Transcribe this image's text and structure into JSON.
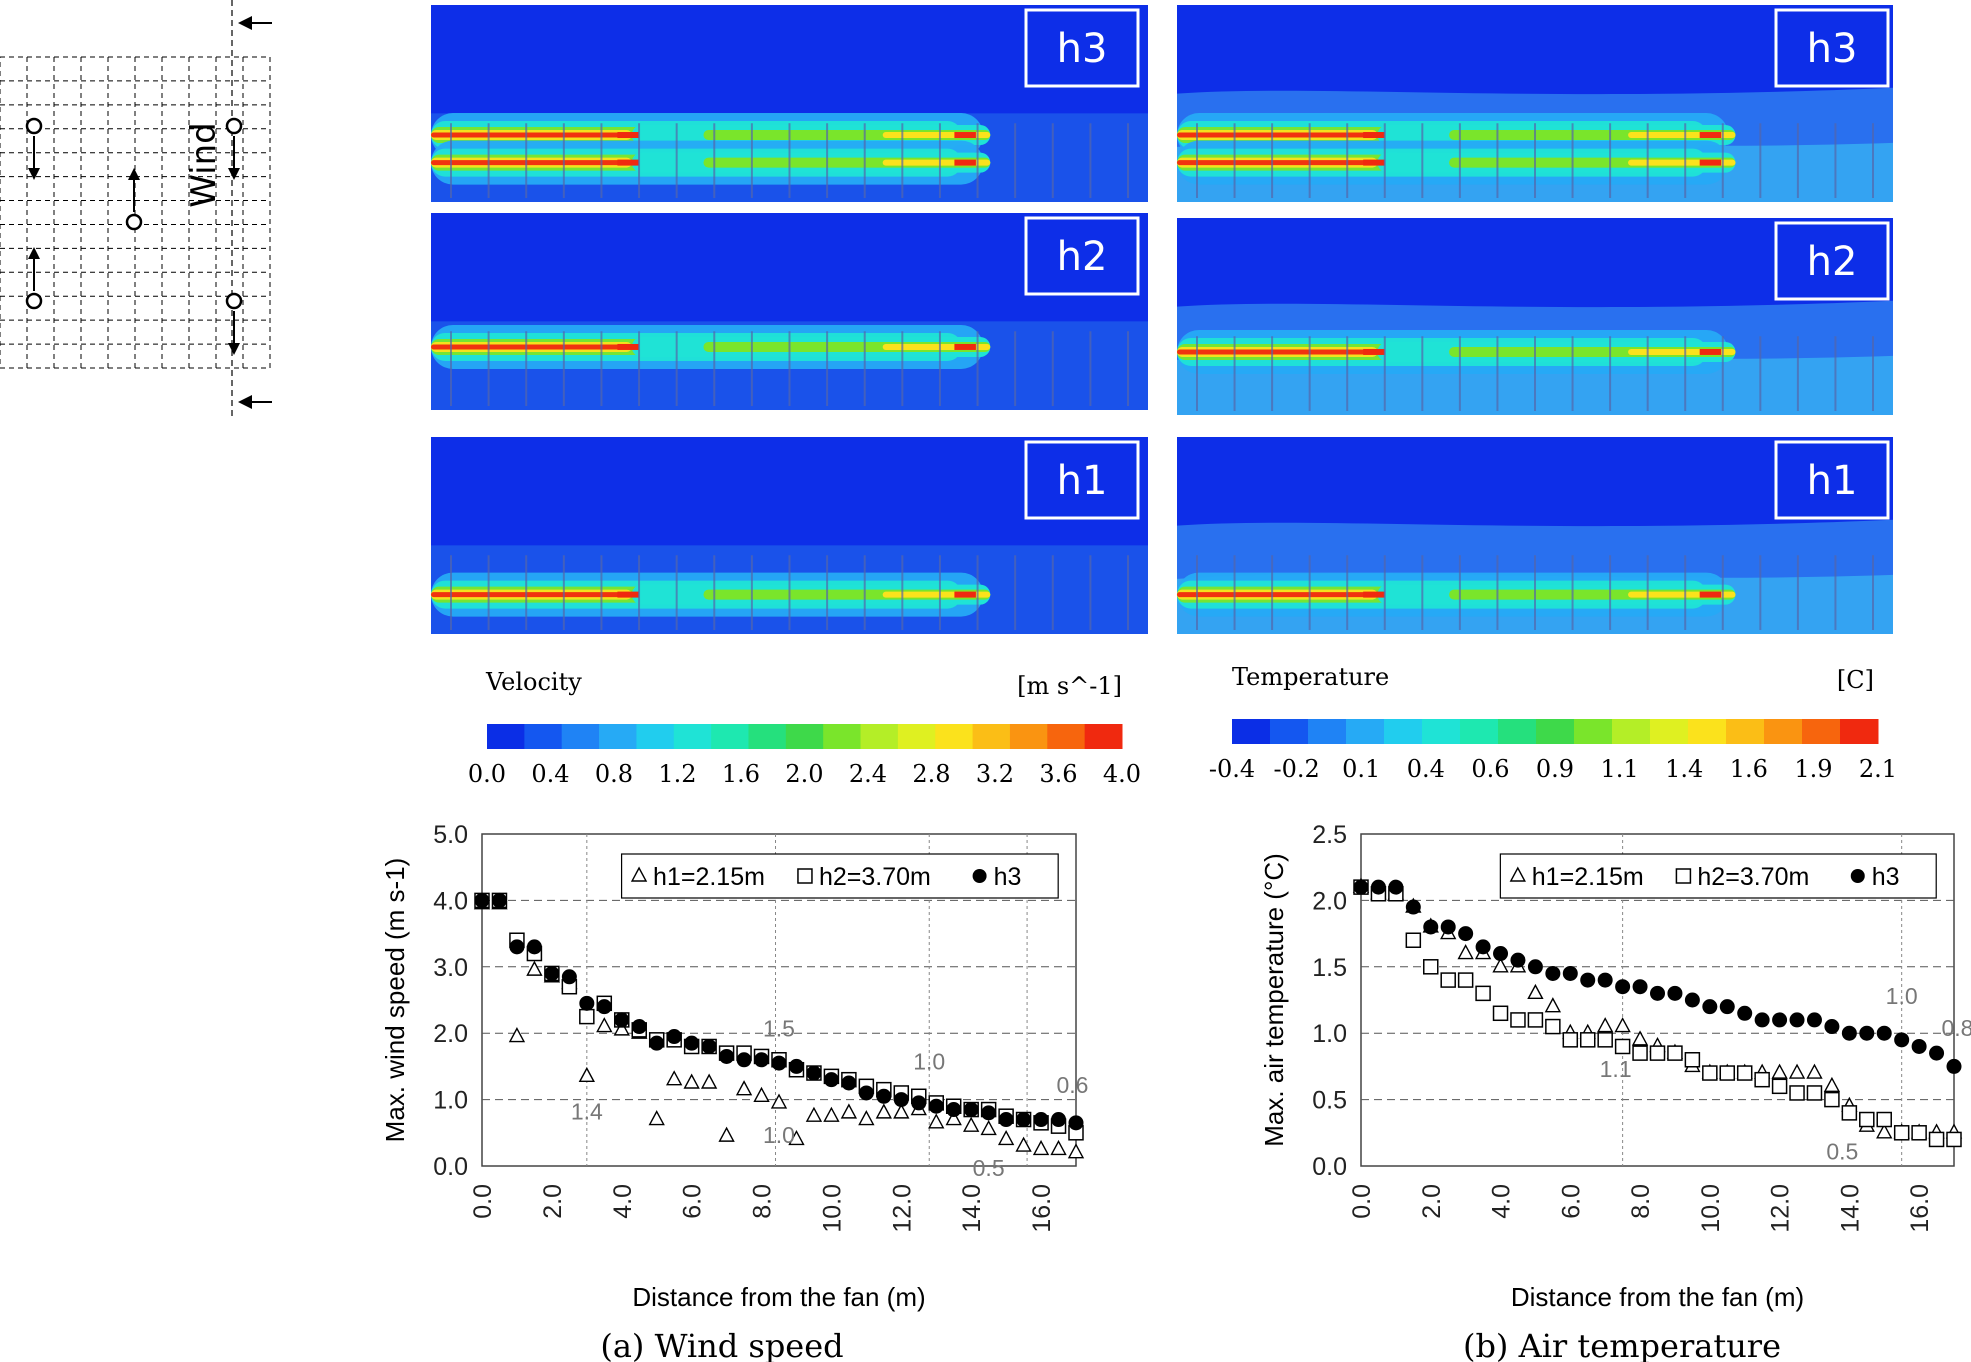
{
  "layout_diagram": {
    "wind_label": "Wind"
  },
  "cfd_panels": {
    "velocity": {
      "heights": [
        "h3",
        "h2",
        "h1"
      ],
      "legend_title": "Velocity",
      "legend_unit": "[m s^-1]",
      "scale_labels": [
        "0.0",
        "0.4",
        "0.8",
        "1.2",
        "1.6",
        "2.0",
        "2.4",
        "2.8",
        "3.2",
        "3.6",
        "4.0"
      ]
    },
    "temperature": {
      "heights": [
        "h3",
        "h2",
        "h1"
      ],
      "legend_title": "Temperature",
      "legend_unit": "[C]",
      "scale_labels": [
        "-0.4",
        "-0.2",
        "0.1",
        "0.4",
        "0.6",
        "0.9",
        "1.1",
        "1.4",
        "1.6",
        "1.9",
        "2.1"
      ]
    },
    "colormap": [
      "#0b2ee6",
      "#1457f0",
      "#1f83f5",
      "#26aaf5",
      "#21cdee",
      "#1fe3d6",
      "#1ee8b0",
      "#25e07d",
      "#3ed94a",
      "#7ae52b",
      "#b4ee27",
      "#dff021",
      "#fbe21c",
      "#fbbe16",
      "#fa9411",
      "#f7650d",
      "#f0290f"
    ],
    "background_color": "#0d2ee8"
  },
  "captions": {
    "a": "(a)  Wind speed",
    "b": "(b)  Air temperature"
  },
  "chart_data": [
    {
      "type": "scatter",
      "ylabel": "Max. wind speed (m s-1)",
      "xlabel": "Distance from the fan (m)",
      "xlim": [
        0,
        17
      ],
      "ylim": [
        0,
        5
      ],
      "xticks": [
        "0.0",
        "2.0",
        "4.0",
        "6.0",
        "8.0",
        "10.0",
        "12.0",
        "14.0",
        "16.0"
      ],
      "yticks": [
        "0.0",
        "1.0",
        "2.0",
        "3.0",
        "4.0",
        "5.0"
      ],
      "fan_lines": [
        3,
        8.4,
        12.8,
        15.6
      ],
      "annotations": [
        {
          "text": "1.4",
          "x": 3.0,
          "y": 0.7
        },
        {
          "text": "1.5",
          "x": 8.5,
          "y": 1.95
        },
        {
          "text": "1.0",
          "x": 8.5,
          "y": 0.35
        },
        {
          "text": "1.0",
          "x": 12.8,
          "y": 1.45
        },
        {
          "text": "0.5",
          "x": 14.5,
          "y": -0.15
        },
        {
          "text": "0.6",
          "x": 16.9,
          "y": 1.1
        }
      ],
      "legend": [
        "h1=2.15m",
        "h2=3.70m",
        "h3"
      ],
      "series": [
        {
          "name": "h1=2.15m",
          "marker": "triangle",
          "x": [
            0,
            0.5,
            1,
            1.5,
            2,
            2.5,
            3,
            3.5,
            4,
            4.5,
            5,
            5.5,
            6,
            6.5,
            7,
            7.5,
            8,
            8.5,
            9,
            9.5,
            10,
            10.5,
            11,
            11.5,
            12,
            12.5,
            13,
            13.5,
            14,
            14.5,
            15,
            15.5,
            16,
            16.5,
            17
          ],
          "y": [
            3.95,
            3.95,
            1.95,
            2.95,
            2.85,
            2.75,
            1.35,
            2.1,
            2.05,
            2.0,
            0.7,
            1.3,
            1.25,
            1.25,
            0.45,
            1.15,
            1.05,
            0.95,
            0.4,
            0.75,
            0.75,
            0.8,
            0.7,
            0.8,
            0.8,
            0.85,
            0.65,
            0.7,
            0.6,
            0.55,
            0.4,
            0.3,
            0.25,
            0.25,
            0.2
          ]
        },
        {
          "name": "h2=3.70m",
          "marker": "square",
          "x": [
            0,
            0.5,
            1,
            1.5,
            2,
            2.5,
            3,
            3.5,
            4,
            4.5,
            5,
            5.5,
            6,
            6.5,
            7,
            7.5,
            8,
            8.5,
            9,
            9.5,
            10,
            10.5,
            11,
            11.5,
            12,
            12.5,
            13,
            13.5,
            14,
            14.5,
            15,
            15.5,
            16,
            16.5,
            17
          ],
          "y": [
            4.0,
            4.0,
            3.4,
            3.2,
            2.9,
            2.7,
            2.25,
            2.45,
            2.2,
            2.05,
            1.9,
            1.9,
            1.8,
            1.8,
            1.7,
            1.7,
            1.65,
            1.6,
            1.45,
            1.4,
            1.35,
            1.3,
            1.2,
            1.15,
            1.1,
            1.05,
            0.95,
            0.9,
            0.85,
            0.85,
            0.75,
            0.7,
            0.65,
            0.6,
            0.5
          ]
        },
        {
          "name": "h3",
          "marker": "circle",
          "x": [
            0,
            0.5,
            1,
            1.5,
            2,
            2.5,
            3,
            3.5,
            4,
            4.5,
            5,
            5.5,
            6,
            6.5,
            7,
            7.5,
            8,
            8.5,
            9,
            9.5,
            10,
            10.5,
            11,
            11.5,
            12,
            12.5,
            13,
            13.5,
            14,
            14.5,
            15,
            15.5,
            16,
            16.5,
            17
          ],
          "y": [
            4.0,
            4.0,
            3.3,
            3.3,
            2.9,
            2.85,
            2.45,
            2.4,
            2.2,
            2.1,
            1.85,
            1.95,
            1.85,
            1.8,
            1.65,
            1.6,
            1.6,
            1.55,
            1.5,
            1.4,
            1.3,
            1.25,
            1.1,
            1.05,
            1.0,
            0.95,
            0.9,
            0.85,
            0.85,
            0.8,
            0.7,
            0.7,
            0.7,
            0.7,
            0.65
          ]
        }
      ]
    },
    {
      "type": "scatter",
      "ylabel": "Max. air temperature (°C)",
      "xlabel": "Distance from the fan (m)",
      "xlim": [
        0,
        17
      ],
      "ylim": [
        0,
        2.5
      ],
      "xticks": [
        "0.0",
        "2.0",
        "4.0",
        "6.0",
        "8.0",
        "10.0",
        "12.0",
        "14.0",
        "16.0"
      ],
      "yticks": [
        "0.0",
        "0.5",
        "1.0",
        "1.5",
        "2.0",
        "2.5"
      ],
      "fan_lines": [
        7.5,
        15.5
      ],
      "annotations": [
        {
          "text": "1.1",
          "x": 7.3,
          "y": 0.67
        },
        {
          "text": "1.0",
          "x": 15.5,
          "y": 1.22
        },
        {
          "text": "0.8",
          "x": 17.1,
          "y": 0.98
        },
        {
          "text": "0.5",
          "x": 13.8,
          "y": 0.05
        }
      ],
      "legend": [
        "h1=2.15m",
        "h2=3.70m",
        "h3"
      ],
      "series": [
        {
          "name": "h1=2.15m",
          "marker": "triangle",
          "x": [
            0,
            0.5,
            1,
            1.5,
            2,
            2.5,
            3,
            3.5,
            4,
            4.5,
            5,
            5.5,
            6,
            6.5,
            7,
            7.5,
            8,
            8.5,
            9,
            9.5,
            10,
            10.5,
            11,
            11.5,
            12,
            12.5,
            13,
            13.5,
            14,
            14.5,
            15,
            15.5,
            16,
            16.5,
            17
          ],
          "y": [
            2.1,
            2.05,
            2.05,
            1.95,
            1.8,
            1.75,
            1.6,
            1.6,
            1.5,
            1.5,
            1.3,
            1.2,
            1.0,
            1.0,
            1.05,
            1.05,
            0.95,
            0.9,
            0.85,
            0.75,
            0.7,
            0.7,
            0.7,
            0.7,
            0.7,
            0.7,
            0.7,
            0.6,
            0.45,
            0.3,
            0.25,
            0.25,
            0.25,
            0.25,
            0.25
          ]
        },
        {
          "name": "h2=3.70m",
          "marker": "square",
          "x": [
            0,
            0.5,
            1,
            1.5,
            2,
            2.5,
            3,
            3.5,
            4,
            4.5,
            5,
            5.5,
            6,
            6.5,
            7,
            7.5,
            8,
            8.5,
            9,
            9.5,
            10,
            10.5,
            11,
            11.5,
            12,
            12.5,
            13,
            13.5,
            14,
            14.5,
            15,
            15.5,
            16,
            16.5,
            17
          ],
          "y": [
            2.1,
            2.05,
            2.05,
            1.7,
            1.5,
            1.4,
            1.4,
            1.3,
            1.15,
            1.1,
            1.1,
            1.05,
            0.95,
            0.95,
            0.95,
            0.9,
            0.85,
            0.85,
            0.85,
            0.8,
            0.7,
            0.7,
            0.7,
            0.65,
            0.6,
            0.55,
            0.55,
            0.5,
            0.4,
            0.35,
            0.35,
            0.25,
            0.25,
            0.2,
            0.2
          ]
        },
        {
          "name": "h3",
          "marker": "circle",
          "x": [
            0,
            0.5,
            1,
            1.5,
            2,
            2.5,
            3,
            3.5,
            4,
            4.5,
            5,
            5.5,
            6,
            6.5,
            7,
            7.5,
            8,
            8.5,
            9,
            9.5,
            10,
            10.5,
            11,
            11.5,
            12,
            12.5,
            13,
            13.5,
            14,
            14.5,
            15,
            15.5,
            16,
            16.5,
            17
          ],
          "y": [
            2.1,
            2.1,
            2.1,
            1.95,
            1.8,
            1.8,
            1.75,
            1.65,
            1.6,
            1.55,
            1.5,
            1.45,
            1.45,
            1.4,
            1.4,
            1.35,
            1.35,
            1.3,
            1.3,
            1.25,
            1.2,
            1.2,
            1.15,
            1.1,
            1.1,
            1.1,
            1.1,
            1.05,
            1.0,
            1.0,
            1.0,
            0.95,
            0.9,
            0.85,
            0.75
          ]
        }
      ]
    }
  ]
}
